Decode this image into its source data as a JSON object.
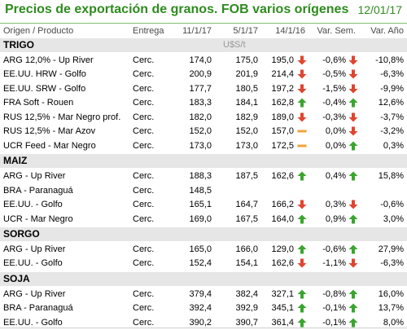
{
  "title": "Precios de exportación de granos. FOB varios orígenes",
  "date": "12/01/17",
  "columns": {
    "origin": "Origen / Producto",
    "delivery": "Entrega",
    "d1": "11/1/17",
    "d2": "5/1/17",
    "d3": "14/1/16",
    "varw": "Var. Sem.",
    "vary": "Var. Año"
  },
  "unit": "U$S/t",
  "groups": [
    {
      "name": "TRIGO",
      "rows": [
        {
          "origin": "ARG 12,0% - Up River",
          "delivery": "Cerc.",
          "d1": "174,0",
          "d2": "175,0",
          "d3": "195,0",
          "d3_icon": "down",
          "varw": "-0,6%",
          "varw_icon": "down",
          "vary": "-10,8%"
        },
        {
          "origin": "EE.UU. HRW - Golfo",
          "delivery": "Cerc.",
          "d1": "200,9",
          "d2": "201,9",
          "d3": "214,4",
          "d3_icon": "down",
          "varw": "-0,5%",
          "varw_icon": "down",
          "vary": "-6,3%"
        },
        {
          "origin": "EE.UU. SRW - Golfo",
          "delivery": "Cerc.",
          "d1": "177,7",
          "d2": "180,5",
          "d3": "197,2",
          "d3_icon": "down",
          "varw": "-1,5%",
          "varw_icon": "down",
          "vary": "-9,9%"
        },
        {
          "origin": "FRA Soft - Rouen",
          "delivery": "Cerc.",
          "d1": "183,3",
          "d2": "184,1",
          "d3": "162,8",
          "d3_icon": "up",
          "varw": "-0,4%",
          "varw_icon": "up",
          "vary": "12,6%"
        },
        {
          "origin": "RUS 12,5% - Mar Negro prof.",
          "delivery": "Cerc.",
          "d1": "182,0",
          "d2": "182,9",
          "d3": "189,0",
          "d3_icon": "down",
          "varw": "-0,3%",
          "varw_icon": "down",
          "vary": "-3,7%"
        },
        {
          "origin": "RUS 12,5% - Mar Azov",
          "delivery": "Cerc.",
          "d1": "152,0",
          "d2": "152,0",
          "d3": "157,0",
          "d3_icon": "flat",
          "varw": "0,0%",
          "varw_icon": "down",
          "vary": "-3,2%"
        },
        {
          "origin": "UCR Feed - Mar Negro",
          "delivery": "Cerc.",
          "d1": "173,0",
          "d2": "173,0",
          "d3": "172,5",
          "d3_icon": "flat",
          "varw": "0,0%",
          "varw_icon": "up",
          "vary": "0,3%"
        }
      ]
    },
    {
      "name": "MAIZ",
      "rows": [
        {
          "origin": "ARG - Up River",
          "delivery": "Cerc.",
          "d1": "188,3",
          "d2": "187,5",
          "d3": "162,6",
          "d3_icon": "up",
          "varw": "0,4%",
          "varw_icon": "up",
          "vary": "15,8%"
        },
        {
          "origin": "BRA - Paranaguá",
          "delivery": "Cerc.",
          "d1": "148,5",
          "d2": "",
          "d3": "",
          "d3_icon": "",
          "varw": "",
          "varw_icon": "",
          "vary": ""
        },
        {
          "origin": "EE.UU. - Golfo",
          "delivery": "Cerc.",
          "d1": "165,1",
          "d2": "164,7",
          "d3": "166,2",
          "d3_icon": "down",
          "varw": "0,3%",
          "varw_icon": "down",
          "vary": "-0,6%"
        },
        {
          "origin": "UCR - Mar Negro",
          "delivery": "Cerc.",
          "d1": "169,0",
          "d2": "167,5",
          "d3": "164,0",
          "d3_icon": "up",
          "varw": "0,9%",
          "varw_icon": "up",
          "vary": "3,0%"
        }
      ]
    },
    {
      "name": "SORGO",
      "rows": [
        {
          "origin": "ARG - Up River",
          "delivery": "Cerc.",
          "d1": "165,0",
          "d2": "166,0",
          "d3": "129,0",
          "d3_icon": "up",
          "varw": "-0,6%",
          "varw_icon": "up",
          "vary": "27,9%"
        },
        {
          "origin": "EE.UU. - Golfo",
          "delivery": "Cerc.",
          "d1": "152,4",
          "d2": "154,1",
          "d3": "162,6",
          "d3_icon": "down",
          "varw": "-1,1%",
          "varw_icon": "down",
          "vary": "-6,3%"
        }
      ]
    },
    {
      "name": "SOJA",
      "rows": [
        {
          "origin": "ARG - Up River",
          "delivery": "Cerc.",
          "d1": "379,4",
          "d2": "382,4",
          "d3": "327,1",
          "d3_icon": "up",
          "varw": "-0,8%",
          "varw_icon": "up",
          "vary": "16,0%"
        },
        {
          "origin": "BRA - Paranaguá",
          "delivery": "Cerc.",
          "d1": "392,4",
          "d2": "392,9",
          "d3": "345,1",
          "d3_icon": "up",
          "varw": "-0,1%",
          "varw_icon": "up",
          "vary": "13,7%"
        },
        {
          "origin": "EE.UU. - Golfo",
          "delivery": "Cerc.",
          "d1": "390,2",
          "d2": "390,7",
          "d3": "361,4",
          "d3_icon": "up",
          "varw": "-0,1%",
          "varw_icon": "up",
          "vary": "8,0%"
        }
      ]
    }
  ],
  "colors": {
    "title": "#2e8b1e",
    "up": "#3aa52e",
    "down": "#e0452f",
    "flat": "#f2a33a",
    "group_bg": "#e6e6e6"
  }
}
